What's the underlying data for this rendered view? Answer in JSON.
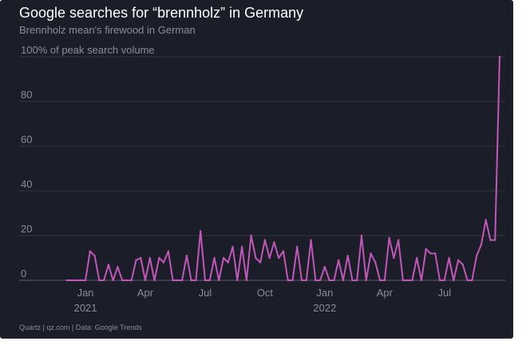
{
  "chart_data": {
    "type": "line",
    "title": "Google searches for “brennholz” in Germany",
    "subtitle": "Brennholz mean's firewood in German",
    "ylabel": "100% of peak search volume",
    "source": "Quartz | qz.com | Data: Google Trends",
    "ylim": [
      0,
      100
    ],
    "y_ticks": [
      "0",
      "20",
      "40",
      "60",
      "80",
      "100% of peak search volume"
    ],
    "x_ticks": [
      {
        "label": "Jan",
        "sub": "2021",
        "week": 4
      },
      {
        "label": "Apr",
        "sub": "",
        "week": 17
      },
      {
        "label": "Jul",
        "sub": "",
        "week": 30
      },
      {
        "label": "Oct",
        "sub": "",
        "week": 43
      },
      {
        "label": "Jan",
        "sub": "2022",
        "week": 56
      },
      {
        "label": "Apr",
        "sub": "",
        "week": 69
      },
      {
        "label": "Jul",
        "sub": "",
        "week": 82
      }
    ],
    "grid": "horizontal",
    "line_color": "#c157b8",
    "series": [
      {
        "values": [
          0,
          0,
          0,
          0,
          0,
          13,
          11,
          0,
          0,
          7,
          0,
          6,
          0,
          0,
          0,
          9,
          10,
          0,
          10,
          0,
          10,
          8,
          13,
          0,
          0,
          0,
          11,
          0,
          0,
          22,
          0,
          0,
          10,
          0,
          10,
          8,
          15,
          0,
          15,
          0,
          20,
          10,
          8,
          18,
          10,
          17,
          10,
          13,
          0,
          0,
          15,
          0,
          0,
          18,
          0,
          0,
          6,
          0,
          0,
          9,
          0,
          11,
          0,
          0,
          20,
          0,
          12,
          8,
          0,
          0,
          19,
          10,
          18,
          0,
          0,
          0,
          10,
          0,
          14,
          12,
          12,
          0,
          0,
          10,
          0,
          9,
          7,
          0,
          0,
          11,
          16,
          27,
          18,
          18,
          100
        ]
      }
    ]
  }
}
